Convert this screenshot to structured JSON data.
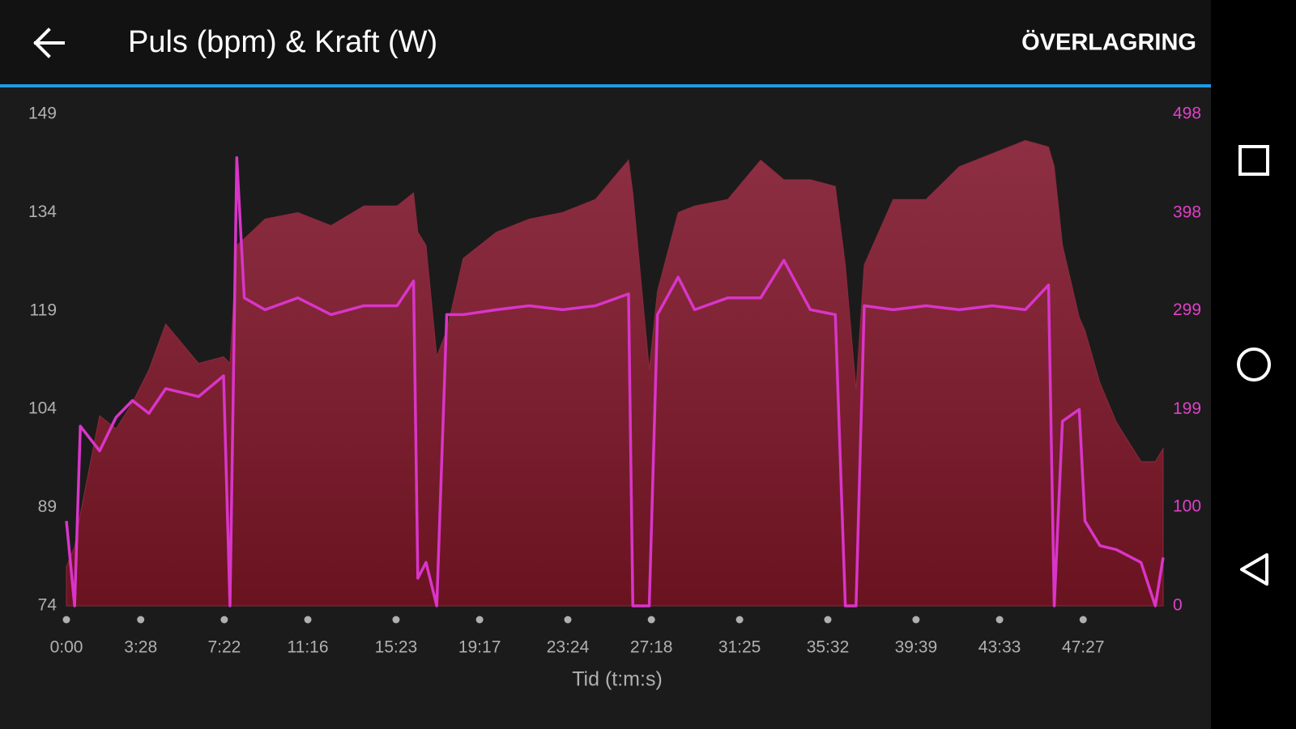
{
  "header": {
    "action": "ÖVERLAGRING"
  },
  "chart_data": {
    "type": "area",
    "title": "Puls (bpm) & Kraft (W)",
    "x_label": "Tid (t:m:s)",
    "x": [
      0,
      23,
      39,
      93,
      139,
      185,
      231,
      278,
      370,
      440,
      458,
      477,
      498,
      556,
      648,
      741,
      833,
      926,
      972,
      984,
      1007,
      1037,
      1065,
      1111,
      1204,
      1296,
      1389,
      1481,
      1574,
      1586,
      1632,
      1655,
      1713,
      1759,
      1852,
      1944,
      2009,
      2083,
      2153,
      2181,
      2211,
      2234,
      2315,
      2407,
      2500,
      2593,
      2685,
      2750,
      2766,
      2789,
      2836,
      2852,
      2894,
      2940,
      3009,
      3049,
      3071
    ],
    "series": [
      {
        "name": "Puls (bpm)",
        "color": "#8a2a3e",
        "values": [
          80,
          83,
          88,
          103,
          101,
          105,
          110,
          117,
          111,
          112,
          111,
          129,
          130,
          133,
          134,
          132,
          135,
          135,
          137,
          131,
          129,
          112,
          116,
          127,
          131,
          133,
          134,
          136,
          142,
          137,
          110,
          122,
          134,
          135,
          136,
          142,
          139,
          139,
          138,
          126,
          107,
          126,
          136,
          136,
          141,
          143,
          145,
          144,
          141,
          129,
          118,
          116,
          108,
          102,
          96,
          96,
          98
        ]
      },
      {
        "name": "Kraft (W)",
        "color": "#d935c9",
        "type": "line",
        "axis": "y2",
        "values": [
          86,
          0,
          182,
          157,
          191,
          208,
          195,
          220,
          212,
          233,
          0,
          454,
          312,
          300,
          312,
          295,
          304,
          304,
          329,
          28,
          44,
          0,
          295,
          295,
          300,
          304,
          300,
          304,
          316,
          0,
          0,
          295,
          333,
          300,
          312,
          312,
          350,
          300,
          295,
          0,
          0,
          304,
          300,
          304,
          300,
          304,
          300,
          325,
          0,
          187,
          199,
          86,
          61,
          57,
          44,
          0,
          49
        ]
      }
    ],
    "xlim": [
      0,
      3071
    ],
    "xticks": [
      {
        "value": 0,
        "label": "0:00"
      },
      {
        "value": 208,
        "label": "3:28"
      },
      {
        "value": 442,
        "label": "7:22"
      },
      {
        "value": 676,
        "label": "11:16"
      },
      {
        "value": 923,
        "label": "15:23"
      },
      {
        "value": 1157,
        "label": "19:17"
      },
      {
        "value": 1404,
        "label": "23:24"
      },
      {
        "value": 1638,
        "label": "27:18"
      },
      {
        "value": 1885,
        "label": "31:25"
      },
      {
        "value": 2132,
        "label": "35:32"
      },
      {
        "value": 2379,
        "label": "39:39"
      },
      {
        "value": 2613,
        "label": "43:33"
      },
      {
        "value": 2847,
        "label": "47:27"
      }
    ],
    "ylim": [
      74,
      149
    ],
    "yticks": [
      74,
      89,
      104,
      119,
      134,
      149
    ],
    "y2lim": [
      0,
      498
    ],
    "y2ticks": [
      0,
      100,
      199,
      299,
      398,
      498
    ],
    "y2_color": "#e040c8"
  }
}
